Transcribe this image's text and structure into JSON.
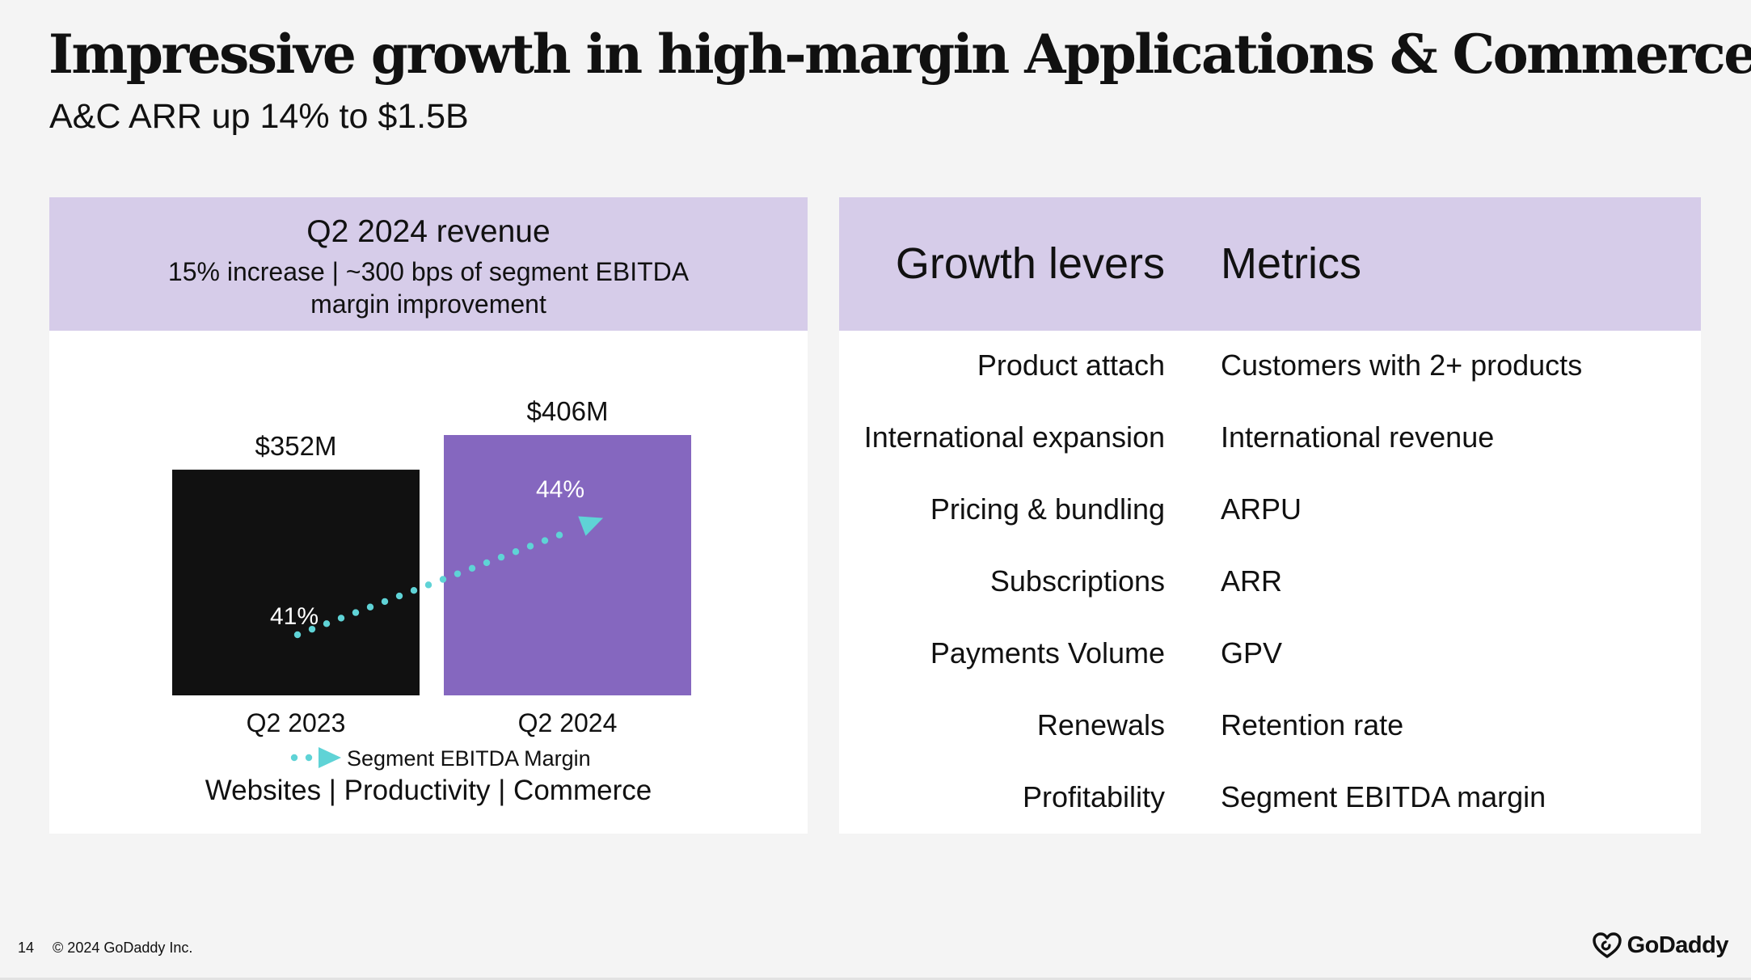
{
  "slide": {
    "title": "Impressive growth in high-margin Applications & Commerce",
    "subtitle": "A&C ARR up 14% to $1.5B",
    "page_number": "14",
    "copyright": "© 2024 GoDaddy Inc.",
    "logo_text": "GoDaddy"
  },
  "left_panel": {
    "heading": "Q2 2024 revenue",
    "subheading": "15% increase | ~300 bps of segment EBITDA margin improvement",
    "segments": "Websites | Productivity | Commerce"
  },
  "chart_data": {
    "type": "bar",
    "title": "Q2 2024 revenue",
    "categories": [
      "Q2 2023",
      "Q2 2024"
    ],
    "values": [
      352,
      406
    ],
    "value_labels": [
      "$352M",
      "$406M"
    ],
    "bar_colors": [
      "#111111",
      "#8567bf"
    ],
    "unit": "$M",
    "ylim": [
      0,
      406
    ],
    "overlay_series": {
      "name": "Segment EBITDA Margin",
      "values": [
        41,
        44
      ],
      "labels": [
        "41%",
        "44%"
      ],
      "style": "dotted-arrow",
      "color": "#5fd3d6"
    },
    "legend": "bottom-center"
  },
  "right_panel": {
    "header_left": "Growth levers",
    "header_right": "Metrics",
    "rows": [
      {
        "lever": "Product attach",
        "metric": "Customers with 2+ products"
      },
      {
        "lever": "International expansion",
        "metric": "International revenue"
      },
      {
        "lever": "Pricing & bundling",
        "metric": "ARPU"
      },
      {
        "lever": "Subscriptions",
        "metric": "ARR"
      },
      {
        "lever": "Payments Volume",
        "metric": "GPV"
      },
      {
        "lever": "Renewals",
        "metric": "Retention rate"
      },
      {
        "lever": "Profitability",
        "metric": "Segment EBITDA margin"
      }
    ]
  }
}
